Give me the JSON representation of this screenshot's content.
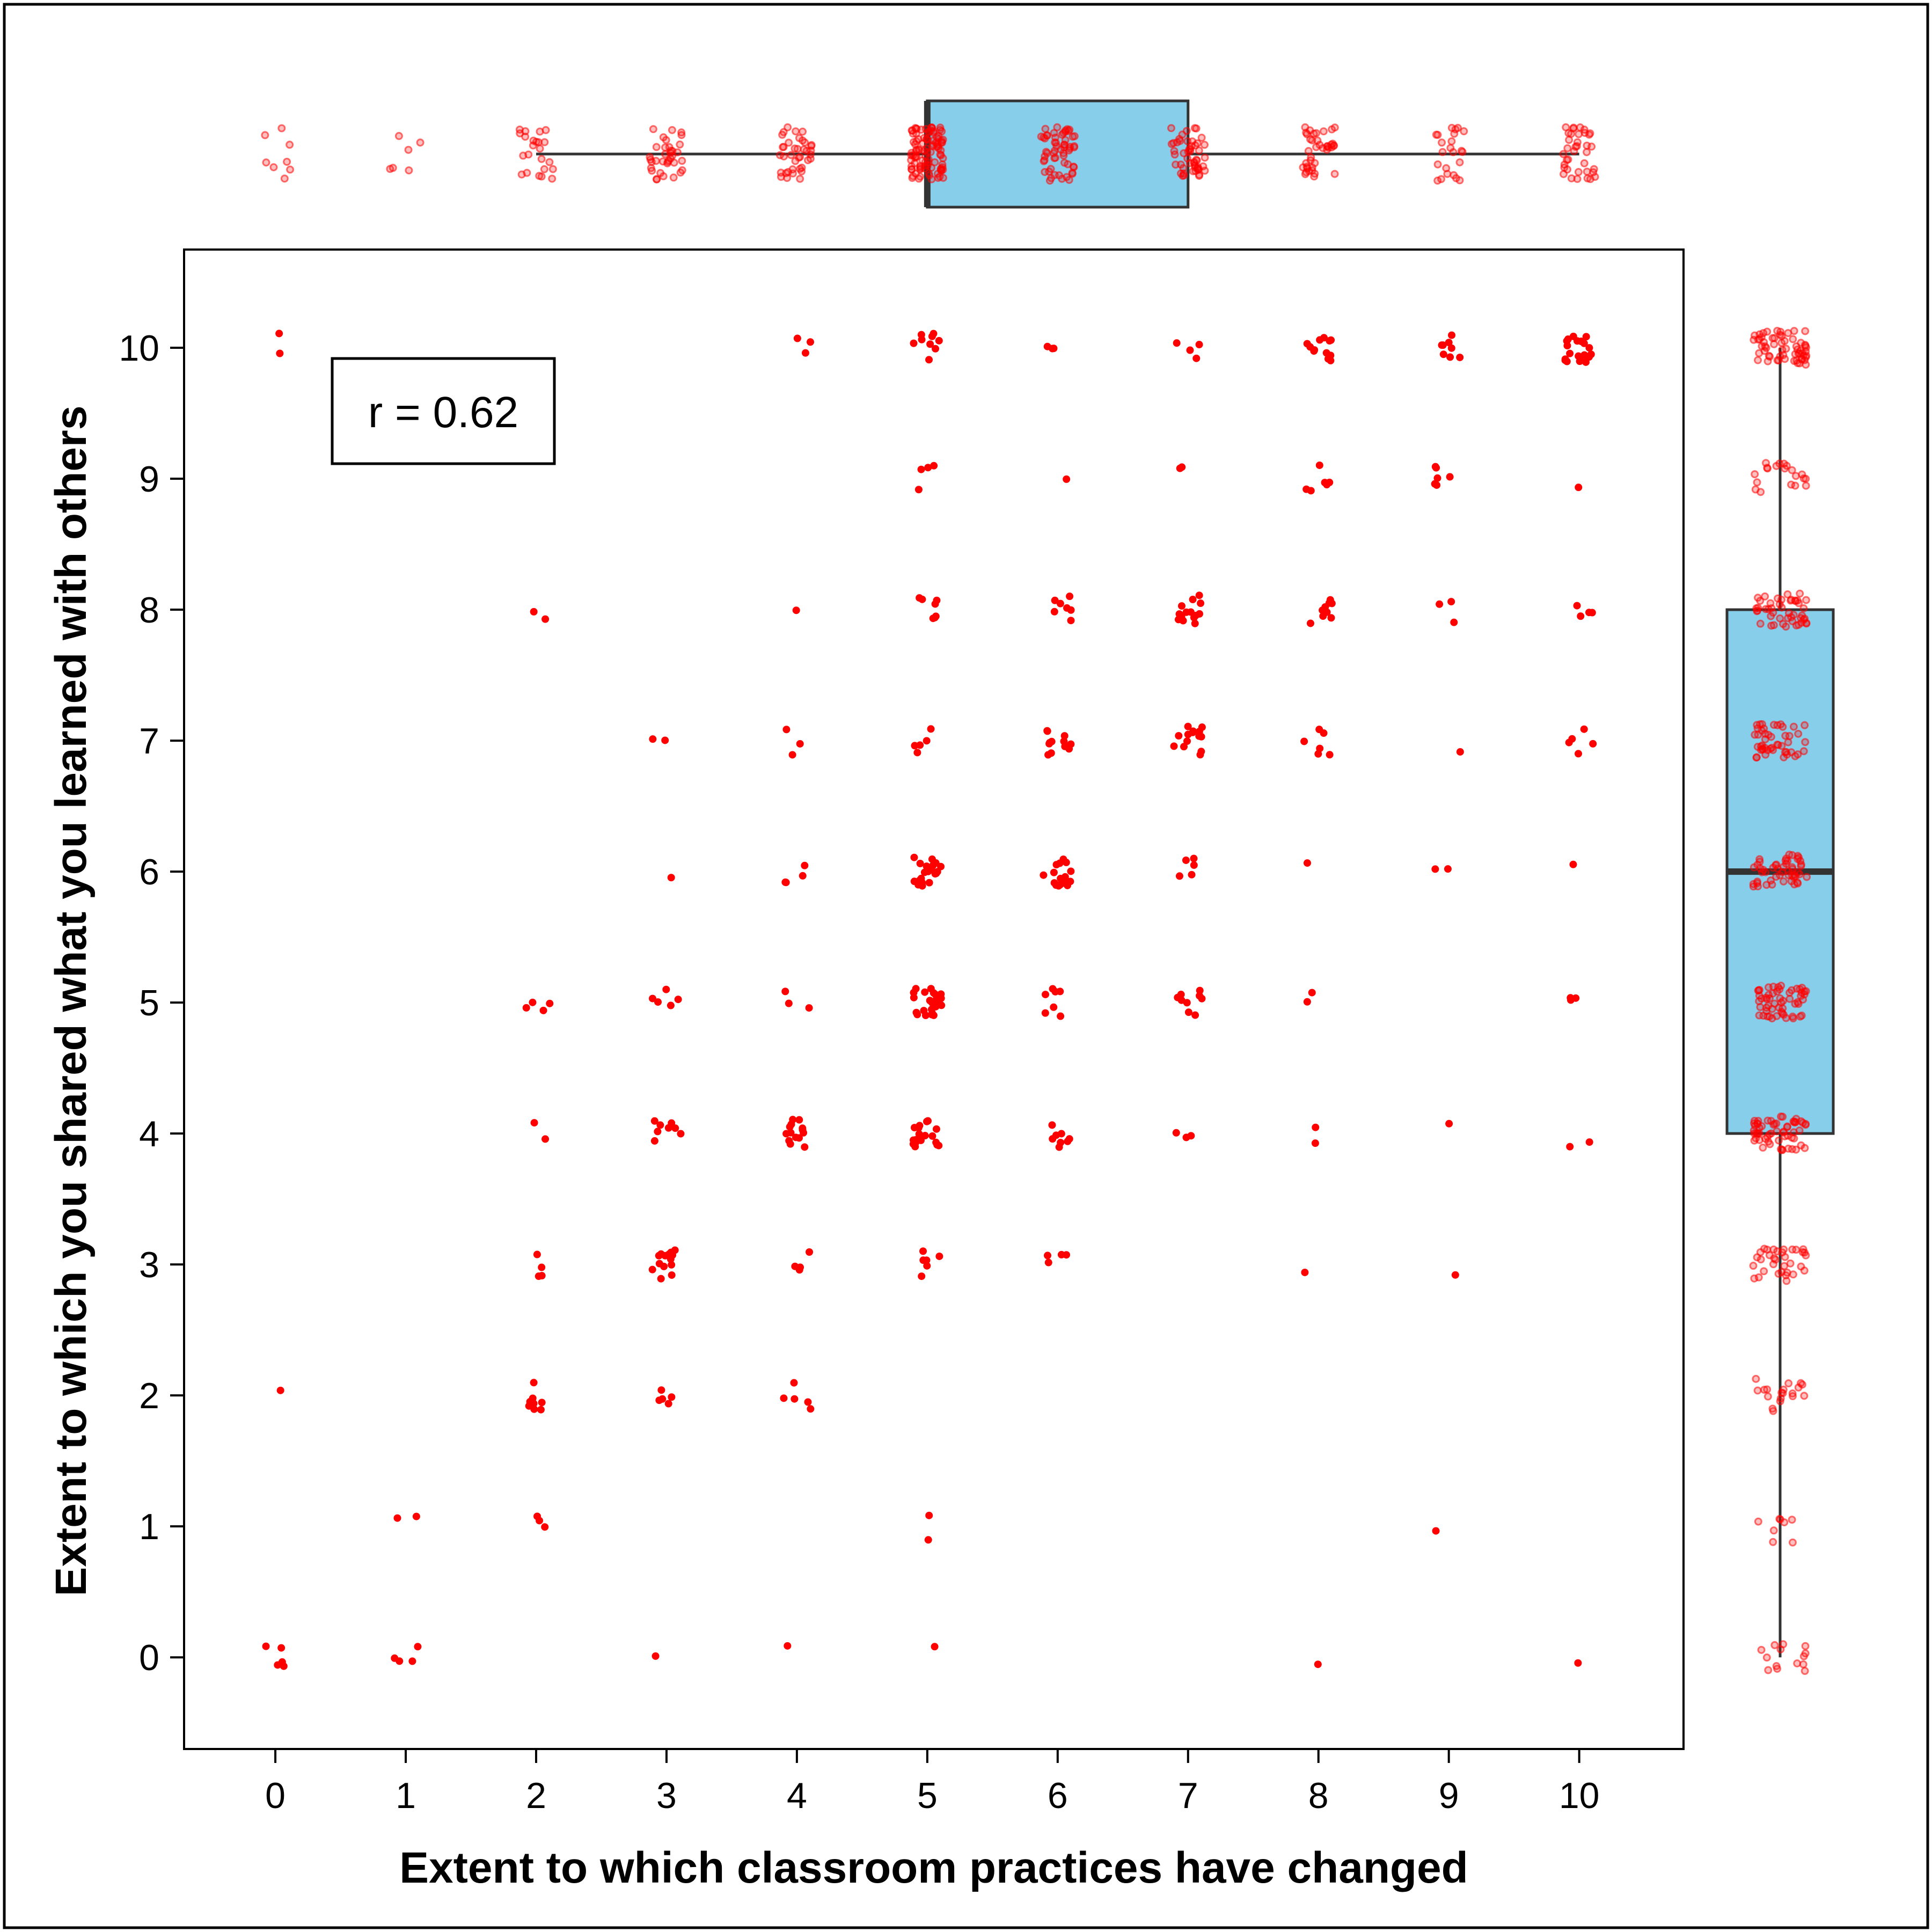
{
  "chart_data": {
    "type": "scatter",
    "title": "",
    "xlabel": "Extent to which classroom practices have changed",
    "ylabel": "Extent to which you shared what you learned with others",
    "xlim": [
      -0.7,
      10.8
    ],
    "ylim": [
      -0.7,
      10.75
    ],
    "x_ticks": [
      "0",
      "1",
      "2",
      "3",
      "4",
      "5",
      "6",
      "7",
      "8",
      "9",
      "10"
    ],
    "y_ticks": [
      "0",
      "1",
      "2",
      "3",
      "4",
      "5",
      "6",
      "7",
      "8",
      "9",
      "10"
    ],
    "grid": false,
    "legend": "none",
    "annotation": "r = 0.62",
    "point_color": "#ff0000",
    "box_fill": "#87ceeb",
    "counts": [
      {
        "x": 0,
        "y": 10,
        "n": 2
      },
      {
        "x": 0,
        "y": 2,
        "n": 1
      },
      {
        "x": 0,
        "y": 0,
        "n": 5
      },
      {
        "x": 1,
        "y": 1,
        "n": 2
      },
      {
        "x": 1,
        "y": 0,
        "n": 4
      },
      {
        "x": 2,
        "y": 8,
        "n": 2
      },
      {
        "x": 2,
        "y": 5,
        "n": 4
      },
      {
        "x": 2,
        "y": 4,
        "n": 2
      },
      {
        "x": 2,
        "y": 3,
        "n": 4
      },
      {
        "x": 2,
        "y": 2,
        "n": 8
      },
      {
        "x": 2,
        "y": 1,
        "n": 3
      },
      {
        "x": 3,
        "y": 7,
        "n": 2
      },
      {
        "x": 3,
        "y": 6,
        "n": 1
      },
      {
        "x": 3,
        "y": 5,
        "n": 5
      },
      {
        "x": 3,
        "y": 4,
        "n": 8
      },
      {
        "x": 3,
        "y": 3,
        "n": 14
      },
      {
        "x": 3,
        "y": 2,
        "n": 5
      },
      {
        "x": 3,
        "y": 0,
        "n": 1
      },
      {
        "x": 4,
        "y": 10,
        "n": 3
      },
      {
        "x": 4,
        "y": 8,
        "n": 1
      },
      {
        "x": 4,
        "y": 7,
        "n": 3
      },
      {
        "x": 4,
        "y": 6,
        "n": 4
      },
      {
        "x": 4,
        "y": 5,
        "n": 3
      },
      {
        "x": 4,
        "y": 4,
        "n": 14
      },
      {
        "x": 4,
        "y": 3,
        "n": 4
      },
      {
        "x": 4,
        "y": 2,
        "n": 5
      },
      {
        "x": 4,
        "y": 0,
        "n": 1
      },
      {
        "x": 5,
        "y": 10,
        "n": 9
      },
      {
        "x": 5,
        "y": 9,
        "n": 4
      },
      {
        "x": 5,
        "y": 8,
        "n": 7
      },
      {
        "x": 5,
        "y": 7,
        "n": 5
      },
      {
        "x": 5,
        "y": 6,
        "n": 22
      },
      {
        "x": 5,
        "y": 5,
        "n": 24
      },
      {
        "x": 5,
        "y": 4,
        "n": 20
      },
      {
        "x": 5,
        "y": 3,
        "n": 6
      },
      {
        "x": 5,
        "y": 1,
        "n": 2
      },
      {
        "x": 5,
        "y": 0,
        "n": 1
      },
      {
        "x": 6,
        "y": 10,
        "n": 3
      },
      {
        "x": 6,
        "y": 9,
        "n": 1
      },
      {
        "x": 6,
        "y": 8,
        "n": 7
      },
      {
        "x": 6,
        "y": 7,
        "n": 12
      },
      {
        "x": 6,
        "y": 6,
        "n": 16
      },
      {
        "x": 6,
        "y": 5,
        "n": 7
      },
      {
        "x": 6,
        "y": 4,
        "n": 8
      },
      {
        "x": 6,
        "y": 3,
        "n": 4
      },
      {
        "x": 7,
        "y": 10,
        "n": 4
      },
      {
        "x": 7,
        "y": 9,
        "n": 2
      },
      {
        "x": 7,
        "y": 8,
        "n": 14
      },
      {
        "x": 7,
        "y": 7,
        "n": 14
      },
      {
        "x": 7,
        "y": 6,
        "n": 5
      },
      {
        "x": 7,
        "y": 5,
        "n": 9
      },
      {
        "x": 7,
        "y": 4,
        "n": 3
      },
      {
        "x": 8,
        "y": 10,
        "n": 12
      },
      {
        "x": 8,
        "y": 9,
        "n": 6
      },
      {
        "x": 8,
        "y": 8,
        "n": 9
      },
      {
        "x": 8,
        "y": 7,
        "n": 6
      },
      {
        "x": 8,
        "y": 6,
        "n": 1
      },
      {
        "x": 8,
        "y": 5,
        "n": 2
      },
      {
        "x": 8,
        "y": 4,
        "n": 2
      },
      {
        "x": 8,
        "y": 3,
        "n": 1
      },
      {
        "x": 8,
        "y": 0,
        "n": 1
      },
      {
        "x": 9,
        "y": 10,
        "n": 8
      },
      {
        "x": 9,
        "y": 9,
        "n": 6
      },
      {
        "x": 9,
        "y": 8,
        "n": 3
      },
      {
        "x": 9,
        "y": 7,
        "n": 1
      },
      {
        "x": 9,
        "y": 6,
        "n": 2
      },
      {
        "x": 9,
        "y": 4,
        "n": 1
      },
      {
        "x": 9,
        "y": 3,
        "n": 1
      },
      {
        "x": 9,
        "y": 1,
        "n": 1
      },
      {
        "x": 10,
        "y": 10,
        "n": 20
      },
      {
        "x": 10,
        "y": 9,
        "n": 1
      },
      {
        "x": 10,
        "y": 8,
        "n": 4
      },
      {
        "x": 10,
        "y": 7,
        "n": 5
      },
      {
        "x": 10,
        "y": 6,
        "n": 1
      },
      {
        "x": 10,
        "y": 5,
        "n": 3
      },
      {
        "x": 10,
        "y": 4,
        "n": 2
      },
      {
        "x": 10,
        "y": 0,
        "n": 1
      }
    ],
    "top_boxplot": {
      "variable": "x",
      "whisker_low": 2,
      "q1": 5,
      "median": 5,
      "q3": 7,
      "whisker_high": 10,
      "outliers": [
        0,
        1
      ]
    },
    "right_boxplot": {
      "variable": "y",
      "whisker_low": 0,
      "q1": 4,
      "median": 6,
      "q3": 8,
      "whisker_high": 10,
      "outliers": []
    }
  }
}
